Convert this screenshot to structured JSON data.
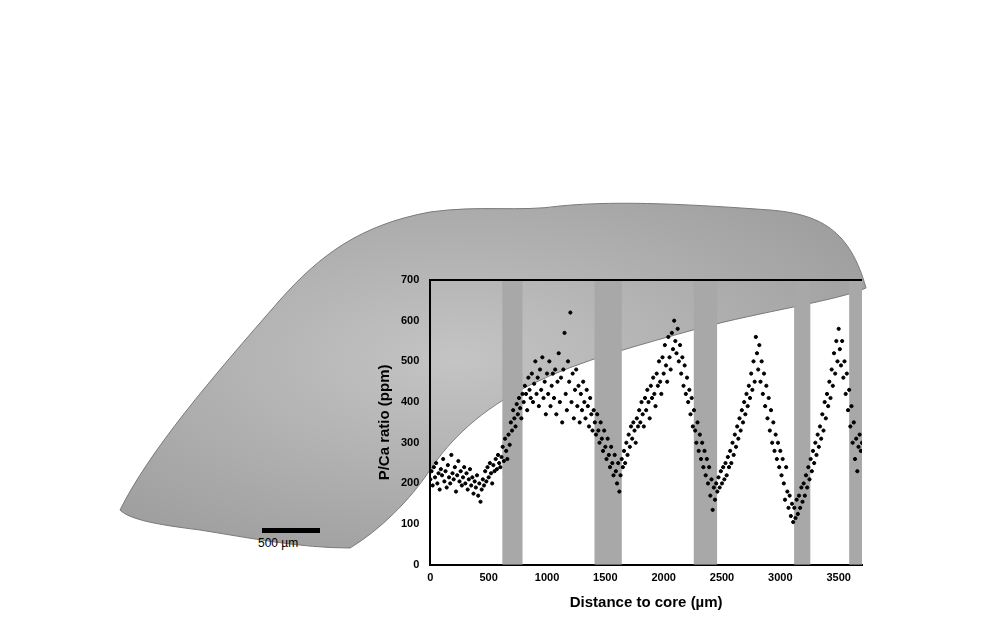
{
  "chart_data": {
    "type": "scatter",
    "x_label": "Distance to core (µm)",
    "y_label": "P/Ca ratio (ppm)",
    "xlim": [
      0,
      3700
    ],
    "xticks": [
      0,
      500,
      1000,
      1500,
      2000,
      2500,
      3000,
      3500
    ],
    "ylim": [
      0,
      700
    ],
    "yticks": [
      0,
      100,
      200,
      300,
      400,
      500,
      600,
      700
    ],
    "grid": false,
    "color": "#000000",
    "marker": "circle",
    "bands": [
      [
        617,
        790
      ],
      [
        1407,
        1641
      ],
      [
        2258,
        2458
      ],
      [
        3118,
        3257
      ],
      [
        3590,
        3700
      ]
    ],
    "band_color": "#a8a8a8",
    "scale_bar": {
      "value": 500,
      "label": "500 µm"
    },
    "x": [
      0,
      10,
      20,
      30,
      40,
      50,
      60,
      70,
      80,
      90,
      100,
      110,
      120,
      130,
      140,
      150,
      160,
      170,
      180,
      190,
      200,
      210,
      220,
      230,
      240,
      250,
      260,
      270,
      280,
      290,
      300,
      310,
      320,
      330,
      340,
      350,
      360,
      370,
      380,
      390,
      400,
      410,
      420,
      430,
      440,
      450,
      460,
      470,
      480,
      490,
      500,
      510,
      520,
      530,
      540,
      550,
      560,
      570,
      580,
      590,
      600,
      610,
      620,
      630,
      640,
      650,
      660,
      670,
      680,
      690,
      700,
      710,
      720,
      730,
      740,
      750,
      760,
      770,
      780,
      790,
      800,
      810,
      820,
      830,
      840,
      850,
      860,
      870,
      880,
      890,
      900,
      910,
      920,
      930,
      940,
      950,
      960,
      970,
      980,
      990,
      1000,
      1010,
      1020,
      1030,
      1040,
      1050,
      1060,
      1070,
      1080,
      1090,
      1100,
      1110,
      1120,
      1130,
      1140,
      1150,
      1160,
      1170,
      1180,
      1190,
      1200,
      1210,
      1220,
      1230,
      1240,
      1250,
      1260,
      1270,
      1280,
      1290,
      1300,
      1310,
      1320,
      1330,
      1340,
      1350,
      1360,
      1370,
      1380,
      1390,
      1400,
      1410,
      1420,
      1430,
      1440,
      1450,
      1460,
      1470,
      1480,
      1490,
      1500,
      1510,
      1520,
      1530,
      1540,
      1550,
      1560,
      1570,
      1580,
      1590,
      1600,
      1610,
      1620,
      1630,
      1640,
      1650,
      1660,
      1670,
      1680,
      1690,
      1700,
      1710,
      1720,
      1730,
      1740,
      1750,
      1760,
      1770,
      1780,
      1790,
      1800,
      1810,
      1820,
      1830,
      1840,
      1850,
      1860,
      1870,
      1880,
      1890,
      1900,
      1910,
      1920,
      1930,
      1940,
      1950,
      1960,
      1970,
      1980,
      1990,
      2000,
      2010,
      2020,
      2030,
      2040,
      2050,
      2060,
      2070,
      2080,
      2090,
      2100,
      2110,
      2120,
      2130,
      2140,
      2150,
      2160,
      2170,
      2180,
      2190,
      2200,
      2210,
      2220,
      2230,
      2240,
      2250,
      2260,
      2270,
      2280,
      2290,
      2300,
      2310,
      2320,
      2330,
      2340,
      2350,
      2360,
      2370,
      2380,
      2390,
      2400,
      2410,
      2420,
      2430,
      2440,
      2450,
      2460,
      2470,
      2480,
      2490,
      2500,
      2510,
      2520,
      2530,
      2540,
      2550,
      2560,
      2570,
      2580,
      2590,
      2600,
      2610,
      2620,
      2630,
      2640,
      2650,
      2660,
      2670,
      2680,
      2690,
      2700,
      2710,
      2720,
      2730,
      2740,
      2750,
      2760,
      2770,
      2780,
      2790,
      2800,
      2810,
      2820,
      2830,
      2840,
      2850,
      2860,
      2870,
      2880,
      2890,
      2900,
      2910,
      2920,
      2930,
      2940,
      2950,
      2960,
      2970,
      2980,
      2990,
      3000,
      3010,
      3020,
      3030,
      3040,
      3050,
      3060,
      3070,
      3080,
      3090,
      3100,
      3110,
      3120,
      3130,
      3140,
      3150,
      3160,
      3170,
      3180,
      3190,
      3200,
      3210,
      3220,
      3230,
      3240,
      3250,
      3260,
      3270,
      3280,
      3290,
      3300,
      3310,
      3320,
      3330,
      3340,
      3350,
      3360,
      3370,
      3380,
      3390,
      3400,
      3410,
      3420,
      3430,
      3440,
      3450,
      3460,
      3470,
      3480,
      3490,
      3500,
      3510,
      3520,
      3530,
      3540,
      3550,
      3560,
      3570,
      3580,
      3590,
      3600,
      3610,
      3620,
      3630,
      3640,
      3650,
      3660,
      3670,
      3680,
      3690,
      3700
    ],
    "values": [
      210,
      230,
      195,
      240,
      215,
      250,
      200,
      225,
      185,
      235,
      220,
      260,
      205,
      230,
      190,
      245,
      215,
      200,
      270,
      225,
      210,
      240,
      180,
      220,
      255,
      205,
      230,
      195,
      215,
      240,
      200,
      225,
      185,
      210,
      235,
      195,
      215,
      175,
      205,
      190,
      220,
      170,
      200,
      155,
      185,
      210,
      195,
      230,
      205,
      240,
      215,
      250,
      225,
      200,
      245,
      230,
      260,
      235,
      270,
      250,
      240,
      265,
      290,
      255,
      310,
      280,
      260,
      320,
      295,
      350,
      330,
      380,
      360,
      340,
      395,
      370,
      410,
      385,
      360,
      420,
      400,
      440,
      420,
      380,
      460,
      430,
      410,
      470,
      400,
      445,
      500,
      420,
      460,
      390,
      480,
      430,
      510,
      410,
      450,
      370,
      470,
      420,
      500,
      390,
      440,
      470,
      410,
      480,
      370,
      450,
      520,
      400,
      460,
      350,
      480,
      570,
      420,
      380,
      500,
      450,
      620,
      400,
      470,
      360,
      430,
      480,
      390,
      440,
      350,
      420,
      380,
      450,
      400,
      360,
      430,
      390,
      340,
      410,
      370,
      330,
      380,
      350,
      320,
      370,
      330,
      300,
      350,
      310,
      280,
      330,
      290,
      260,
      310,
      270,
      240,
      290,
      250,
      220,
      270,
      230,
      200,
      250,
      180,
      220,
      260,
      240,
      280,
      250,
      300,
      270,
      320,
      290,
      340,
      310,
      350,
      330,
      300,
      360,
      340,
      380,
      350,
      400,
      370,
      340,
      410,
      380,
      430,
      400,
      360,
      440,
      410,
      460,
      420,
      390,
      470,
      440,
      500,
      450,
      420,
      510,
      470,
      540,
      490,
      450,
      560,
      510,
      480,
      570,
      530,
      600,
      550,
      520,
      580,
      500,
      540,
      470,
      510,
      440,
      490,
      420,
      460,
      400,
      430,
      370,
      410,
      340,
      380,
      330,
      300,
      350,
      280,
      320,
      260,
      300,
      240,
      280,
      220,
      260,
      200,
      240,
      170,
      210,
      135,
      190,
      160,
      200,
      180,
      215,
      190,
      230,
      200,
      240,
      210,
      250,
      220,
      265,
      240,
      280,
      250,
      300,
      270,
      320,
      290,
      340,
      310,
      360,
      330,
      380,
      350,
      400,
      370,
      420,
      390,
      440,
      410,
      470,
      430,
      500,
      450,
      560,
      520,
      480,
      540,
      450,
      500,
      420,
      470,
      390,
      440,
      360,
      410,
      330,
      380,
      300,
      350,
      280,
      320,
      260,
      300,
      240,
      280,
      220,
      260,
      200,
      160,
      240,
      180,
      140,
      170,
      120,
      150,
      105,
      140,
      115,
      160,
      125,
      170,
      140,
      190,
      155,
      200,
      170,
      220,
      190,
      240,
      210,
      260,
      230,
      280,
      250,
      300,
      270,
      320,
      290,
      340,
      310,
      370,
      330,
      400,
      360,
      420,
      390,
      450,
      410,
      480,
      440,
      520,
      470,
      550,
      500,
      580,
      530,
      490,
      550,
      460,
      500,
      420,
      470,
      380,
      430,
      340,
      390,
      300,
      350,
      260,
      310,
      230,
      290,
      320,
      280,
      300
    ]
  }
}
